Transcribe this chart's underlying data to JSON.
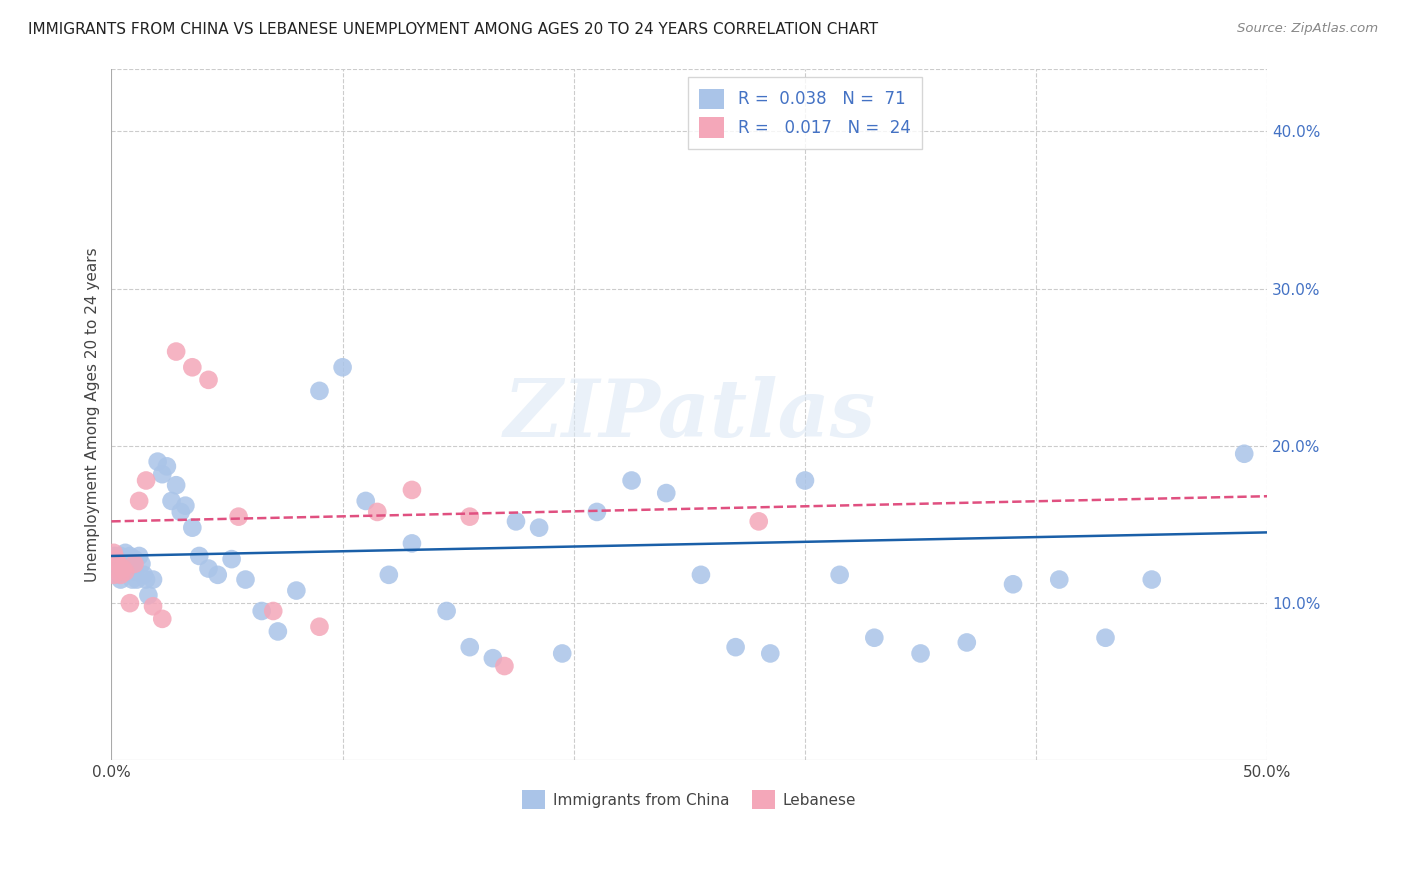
{
  "title": "IMMIGRANTS FROM CHINA VS LEBANESE UNEMPLOYMENT AMONG AGES 20 TO 24 YEARS CORRELATION CHART",
  "source": "Source: ZipAtlas.com",
  "ylabel": "Unemployment Among Ages 20 to 24 years",
  "xlim": [
    0.0,
    0.5
  ],
  "ylim": [
    0.0,
    0.44
  ],
  "xticks": [
    0.0,
    0.05,
    0.1,
    0.15,
    0.2,
    0.25,
    0.3,
    0.35,
    0.4,
    0.45,
    0.5
  ],
  "ytick_positions": [
    0.1,
    0.2,
    0.3,
    0.4
  ],
  "ytick_labels": [
    "10.0%",
    "20.0%",
    "30.0%",
    "40.0%"
  ],
  "grid_color": "#cccccc",
  "background_color": "#ffffff",
  "legend_R1": "0.038",
  "legend_N1": "71",
  "legend_R2": "0.017",
  "legend_N2": "24",
  "label1": "Immigrants from China",
  "label2": "Lebanese",
  "color1": "#aac4e8",
  "color2": "#f4a7b9",
  "line_color1": "#1a5fa8",
  "line_color2": "#e05080",
  "watermark": "ZIPatlas",
  "china_x": [
    0.001,
    0.001,
    0.002,
    0.002,
    0.002,
    0.003,
    0.003,
    0.003,
    0.004,
    0.004,
    0.005,
    0.005,
    0.005,
    0.006,
    0.006,
    0.007,
    0.008,
    0.008,
    0.009,
    0.01,
    0.01,
    0.011,
    0.012,
    0.013,
    0.014,
    0.015,
    0.016,
    0.018,
    0.02,
    0.022,
    0.024,
    0.026,
    0.028,
    0.03,
    0.032,
    0.035,
    0.038,
    0.042,
    0.046,
    0.052,
    0.058,
    0.065,
    0.072,
    0.08,
    0.09,
    0.1,
    0.11,
    0.12,
    0.13,
    0.145,
    0.155,
    0.165,
    0.175,
    0.185,
    0.195,
    0.21,
    0.225,
    0.24,
    0.255,
    0.27,
    0.285,
    0.3,
    0.315,
    0.33,
    0.35,
    0.37,
    0.39,
    0.41,
    0.43,
    0.45,
    0.49
  ],
  "china_y": [
    0.13,
    0.125,
    0.13,
    0.12,
    0.125,
    0.128,
    0.122,
    0.118,
    0.13,
    0.115,
    0.128,
    0.125,
    0.12,
    0.132,
    0.128,
    0.125,
    0.13,
    0.122,
    0.115,
    0.128,
    0.12,
    0.115,
    0.13,
    0.125,
    0.118,
    0.115,
    0.105,
    0.115,
    0.19,
    0.182,
    0.187,
    0.165,
    0.175,
    0.158,
    0.162,
    0.148,
    0.13,
    0.122,
    0.118,
    0.128,
    0.115,
    0.095,
    0.082,
    0.108,
    0.235,
    0.25,
    0.165,
    0.118,
    0.138,
    0.095,
    0.072,
    0.065,
    0.152,
    0.148,
    0.068,
    0.158,
    0.178,
    0.17,
    0.118,
    0.072,
    0.068,
    0.178,
    0.118,
    0.078,
    0.068,
    0.075,
    0.112,
    0.115,
    0.078,
    0.115,
    0.195
  ],
  "lebanese_x": [
    0.001,
    0.001,
    0.002,
    0.003,
    0.004,
    0.005,
    0.006,
    0.008,
    0.01,
    0.012,
    0.015,
    0.018,
    0.022,
    0.028,
    0.035,
    0.042,
    0.055,
    0.07,
    0.09,
    0.115,
    0.13,
    0.155,
    0.17,
    0.28
  ],
  "lebanese_y": [
    0.132,
    0.118,
    0.128,
    0.125,
    0.118,
    0.122,
    0.12,
    0.1,
    0.125,
    0.165,
    0.178,
    0.098,
    0.09,
    0.26,
    0.25,
    0.242,
    0.155,
    0.095,
    0.085,
    0.158,
    0.172,
    0.155,
    0.06,
    0.152
  ],
  "line1_x": [
    0.0,
    0.5
  ],
  "line1_y": [
    0.13,
    0.145
  ],
  "line2_x": [
    0.0,
    0.5
  ],
  "line2_y": [
    0.152,
    0.168
  ]
}
